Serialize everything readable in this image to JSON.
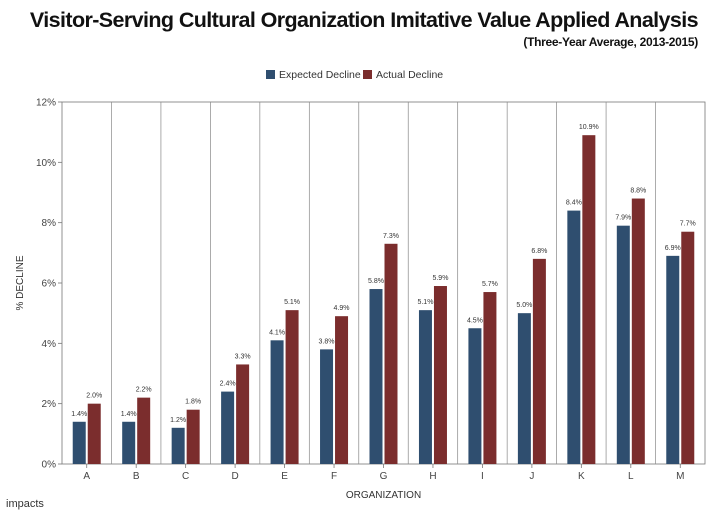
{
  "chart_data": {
    "type": "bar",
    "title": "Visitor-Serving Cultural Organization Imitative Value Applied Analysis",
    "subtitle": "(Three-Year Average, 2013-2015)",
    "xlabel": "ORGANIZATION",
    "ylabel": "% DECLINE",
    "categories": [
      "A",
      "B",
      "C",
      "D",
      "E",
      "F",
      "G",
      "H",
      "I",
      "J",
      "K",
      "L",
      "M"
    ],
    "series": [
      {
        "name": "Expected Decline",
        "color": "#2f4e6f",
        "values": [
          1.4,
          1.4,
          1.2,
          2.4,
          4.1,
          3.8,
          5.8,
          5.1,
          4.5,
          5.0,
          8.4,
          7.9,
          6.9
        ],
        "labels": [
          "1.4%",
          "1.4%",
          "1.2%",
          "2.4%",
          "4.1%",
          "3.8%",
          "5.8%",
          "5.1%",
          "4.5%",
          "5.0%",
          "8.4%",
          "7.9%",
          "6.9%"
        ]
      },
      {
        "name": "Actual Decline",
        "color": "#7b2d2d",
        "values": [
          2.0,
          2.2,
          1.8,
          3.3,
          5.1,
          4.9,
          7.3,
          5.9,
          5.7,
          6.8,
          10.9,
          8.8,
          7.7
        ],
        "labels": [
          "2.0%",
          "2.2%",
          "1.8%",
          "3.3%",
          "5.1%",
          "4.9%",
          "7.3%",
          "5.9%",
          "5.7%",
          "6.8%",
          "10.9%",
          "8.8%",
          "7.7%"
        ]
      }
    ],
    "ylim": [
      0,
      12
    ],
    "yticks": [
      0,
      2,
      4,
      6,
      8,
      10,
      12
    ],
    "ytick_labels": [
      "0%",
      "2%",
      "4%",
      "6%",
      "8%",
      "10%",
      "12%"
    ],
    "legend": "top-center",
    "grid": "vertical category separators"
  },
  "brand": "impacts"
}
